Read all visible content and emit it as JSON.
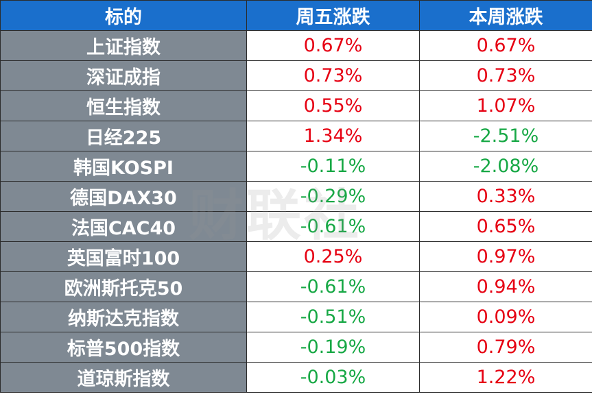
{
  "table": {
    "header": [
      "标的",
      "周五涨跌",
      "本周涨跌"
    ],
    "rows": [
      [
        "上证指数",
        "0.67%",
        "0.67%"
      ],
      [
        "深证成指",
        "0.73%",
        "0.73%"
      ],
      [
        "恒生指数",
        "0.55%",
        "1.07%"
      ],
      [
        "日经225",
        "1.34%",
        "-2.51%"
      ],
      [
        "韩国KOSPI",
        "-0.11%",
        "-2.08%"
      ],
      [
        "德国DAX30",
        "-0.29%",
        "0.33%"
      ],
      [
        "法国CAC40",
        "-0.61%",
        "0.65%"
      ],
      [
        "英国富时100",
        "0.25%",
        "0.97%"
      ],
      [
        "欧洲斯托克50",
        "-0.61%",
        "0.94%"
      ],
      [
        "纳斯达克指数",
        "-0.51%",
        "0.09%"
      ],
      [
        "标普500指数",
        "-0.19%",
        "0.79%"
      ],
      [
        "道琼斯指数",
        "-0.03%",
        "1.22%"
      ]
    ]
  },
  "watermark": "财联社"
}
